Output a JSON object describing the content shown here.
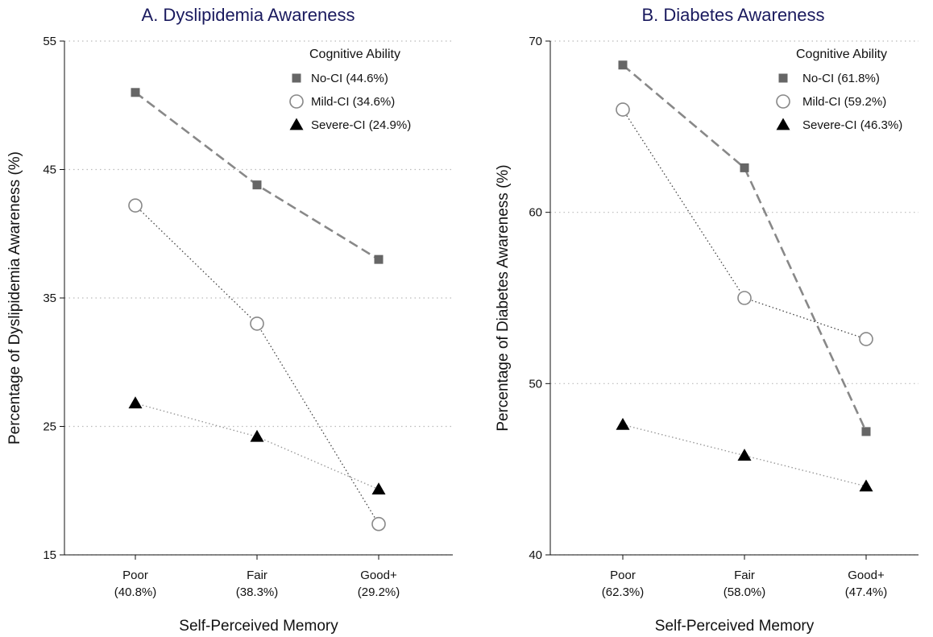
{
  "colors": {
    "title": "#1a1a5e",
    "grid": "#bbbbbb",
    "axis": "#111111",
    "no_ci": "#666666",
    "mild_ci": "#888888",
    "severe_ci": "#000000",
    "severe_line": "#999999"
  },
  "chart_data": [
    {
      "type": "line",
      "title": "A. Dyslipidemia Awareness",
      "xlabel": "Self-Perceived Memory",
      "ylabel": "Percentage of Dyslipidemia Awareness (%)",
      "ylim": [
        15,
        55
      ],
      "yticks": [
        15,
        25,
        35,
        45,
        55
      ],
      "grid": true,
      "legend_placement": "top-right",
      "legend_title": "Cognitive Ability",
      "categories": [
        {
          "name": "Poor",
          "pct": "(40.8%)"
        },
        {
          "name": "Fair",
          "pct": "(38.3%)"
        },
        {
          "name": "Good+",
          "pct": "(29.2%)"
        }
      ],
      "series": [
        {
          "name": "No-CI (44.6%)",
          "marker": "square",
          "line": "dashed",
          "values": [
            51.0,
            43.8,
            38.0
          ]
        },
        {
          "name": "Mild-CI (34.6%)",
          "marker": "circle",
          "line": "dotted",
          "values": [
            42.2,
            33.0,
            17.4
          ]
        },
        {
          "name": "Severe-CI (24.9%)",
          "marker": "triangle",
          "line": "dotted-light",
          "values": [
            26.8,
            24.2,
            20.1
          ]
        }
      ]
    },
    {
      "type": "line",
      "title": "B. Diabetes Awareness",
      "xlabel": "Self-Perceived Memory",
      "ylabel": "Percentage of Diabetes Awareness (%)",
      "ylim": [
        40,
        70
      ],
      "yticks": [
        40,
        50,
        60,
        70
      ],
      "grid": true,
      "legend_placement": "top-right",
      "legend_title": "Cognitive Ability",
      "categories": [
        {
          "name": "Poor",
          "pct": "(62.3%)"
        },
        {
          "name": "Fair",
          "pct": "(58.0%)"
        },
        {
          "name": "Good+",
          "pct": "(47.4%)"
        }
      ],
      "series": [
        {
          "name": "No-CI (61.8%)",
          "marker": "square",
          "line": "dashed",
          "values": [
            68.6,
            62.6,
            47.2
          ]
        },
        {
          "name": "Mild-CI (59.2%)",
          "marker": "circle",
          "line": "dotted",
          "values": [
            66.0,
            55.0,
            52.6
          ]
        },
        {
          "name": "Severe-CI (46.3%)",
          "marker": "triangle",
          "line": "dotted-light",
          "values": [
            47.6,
            45.8,
            44.0
          ]
        }
      ]
    }
  ]
}
